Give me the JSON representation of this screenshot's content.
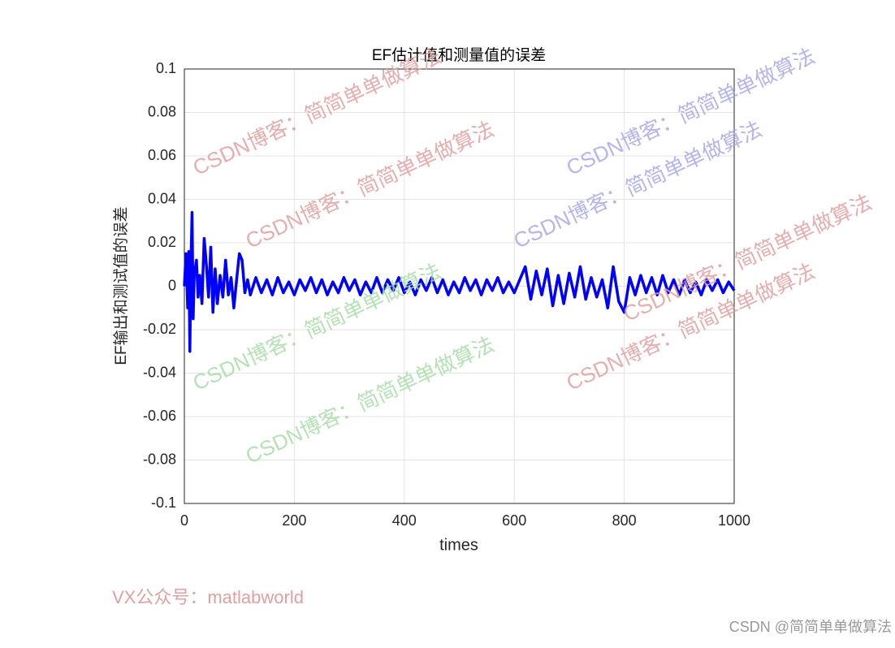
{
  "chart_data": {
    "type": "line",
    "title": "EF估计值和测量值的误差",
    "x_label": "times",
    "y_label": "EF输出和测试值的误差",
    "x": [
      0,
      3,
      6,
      8,
      10,
      12,
      14,
      16,
      18,
      22,
      25,
      28,
      32,
      36,
      40,
      44,
      48,
      52,
      56,
      60,
      65,
      70,
      75,
      80,
      85,
      90,
      95,
      100,
      105,
      110,
      115,
      120,
      130,
      140,
      150,
      160,
      170,
      180,
      190,
      200,
      210,
      220,
      230,
      240,
      250,
      260,
      270,
      280,
      290,
      300,
      310,
      320,
      330,
      340,
      350,
      360,
      370,
      380,
      390,
      400,
      410,
      420,
      430,
      440,
      450,
      460,
      470,
      480,
      490,
      500,
      510,
      520,
      530,
      540,
      550,
      560,
      570,
      580,
      590,
      600,
      610,
      620,
      630,
      640,
      650,
      660,
      670,
      680,
      690,
      700,
      710,
      720,
      730,
      740,
      750,
      760,
      770,
      780,
      790,
      800,
      810,
      820,
      830,
      840,
      850,
      860,
      870,
      880,
      890,
      900,
      910,
      920,
      930,
      940,
      950,
      960,
      970,
      980,
      990,
      1000
    ],
    "series": [
      {
        "color": "#0000ff",
        "values": [
          0,
          0.015,
          -0.01,
          0.016,
          -0.03,
          0.01,
          0.034,
          -0.015,
          0.005,
          0.012,
          -0.005,
          0.005,
          -0.008,
          0.022,
          0.01,
          -0.005,
          0.018,
          -0.012,
          0.008,
          -0.008,
          0.005,
          -0.005,
          0.012,
          -0.004,
          0.004,
          -0.01,
          0.003,
          0.015,
          0.012,
          -0.003,
          0.003,
          -0.004,
          0.004,
          -0.003,
          0.003,
          -0.004,
          0.004,
          -0.003,
          0.002,
          -0.004,
          0.003,
          -0.002,
          0.004,
          -0.003,
          0.003,
          -0.004,
          0.002,
          -0.003,
          0.004,
          -0.002,
          0.003,
          -0.004,
          0.002,
          -0.003,
          0.004,
          -0.003,
          0.003,
          -0.002,
          0.004,
          -0.003,
          0.002,
          -0.004,
          0.003,
          -0.002,
          0.004,
          -0.003,
          0.003,
          -0.004,
          0.002,
          -0.003,
          0.004,
          -0.002,
          0.003,
          -0.004,
          0.003,
          -0.002,
          0.004,
          -0.003,
          0.002,
          -0.003,
          0.003,
          0.009,
          -0.006,
          0.007,
          -0.004,
          0.008,
          -0.009,
          0.005,
          -0.008,
          0.006,
          -0.005,
          0.009,
          -0.006,
          0.004,
          -0.005,
          0.003,
          -0.01,
          0.009,
          -0.007,
          -0.012,
          0.004,
          -0.004,
          0.005,
          -0.003,
          0.004,
          -0.004,
          0.005,
          -0.003,
          0.003,
          -0.004,
          0.003,
          -0.003,
          0.002,
          -0.004,
          0.003,
          -0.002,
          0.003,
          -0.003,
          0.002,
          -0.002
        ]
      }
    ],
    "xlim": [
      0,
      1000
    ],
    "xticks": [
      0,
      200,
      400,
      600,
      800,
      1000
    ],
    "ylim": [
      -0.1,
      0.1
    ],
    "yticks": [
      -0.1,
      -0.08,
      -0.06,
      -0.04,
      -0.02,
      0,
      0.02,
      0.04,
      0.06,
      0.08,
      0.1
    ],
    "grid": true
  },
  "watermarks": [
    {
      "text": "CSDN博客：简简单单做算法",
      "color": "#e0a0a0"
    },
    {
      "text": "CSDN博客：简简单单做算法",
      "color": "#e0a0a0"
    },
    {
      "text": "CSDN博客：简简单单做算法",
      "color": "#a8a8e8"
    },
    {
      "text": "CSDN博客：简简单单做算法",
      "color": "#a8a8e8"
    },
    {
      "text": "CSDN博客：简简单单做算法",
      "color": "#a8dca8"
    },
    {
      "text": "CSDN博客：简简单单做算法",
      "color": "#a8dca8"
    },
    {
      "text": "CSDN博客：简简单单做算法",
      "color": "#e0a0a0"
    },
    {
      "text": "CSDN博客：简简单单做算法",
      "color": "#e0a0a0"
    }
  ],
  "footer_note": "VX公众号：matlabworld",
  "credit": "CSDN @简简单单做算法"
}
